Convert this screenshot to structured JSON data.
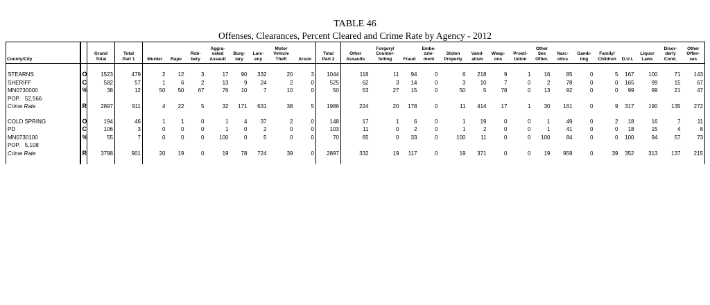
{
  "header": {
    "title": "TABLE 46",
    "subtitle": "Offenses, Clearances, Percent Cleared and Crime Rate by Agency - 2012"
  },
  "table": {
    "columns": [
      [
        "County/City"
      ],
      [
        "Grand",
        "Total"
      ],
      [
        "Total",
        "Part 1"
      ],
      [
        "Murder"
      ],
      [
        "Rape"
      ],
      [
        "Rob-",
        "bery"
      ],
      [
        "Aggra-",
        "vated",
        "Assault"
      ],
      [
        "Burg-",
        "lary"
      ],
      [
        "Larc-",
        "eny"
      ],
      [
        "Motor",
        "Vehicle",
        "Theft"
      ],
      [
        "Arson"
      ],
      [
        "Total",
        "Part 2"
      ],
      [
        "Other",
        "Assaults"
      ],
      [
        "Forgery/",
        "Counter-",
        "feiting"
      ],
      [
        "Fraud"
      ],
      [
        "Embe-",
        "zzle-",
        "ment"
      ],
      [
        "Stolen",
        "Property"
      ],
      [
        "Vand-",
        "alism"
      ],
      [
        "Weap-",
        "ons"
      ],
      [
        "Prosti-",
        "tution"
      ],
      [
        "Other",
        "Sex",
        "Offen."
      ],
      [
        "Narc-",
        "otics"
      ],
      [
        "Gamb-",
        "ling"
      ],
      [
        "Family/",
        "Children"
      ],
      [
        "D.U.I."
      ],
      [
        "Liquor",
        "Laws"
      ],
      [
        "Disor-",
        "derly",
        "Cond."
      ],
      [
        "Other",
        "Offen-",
        "ses"
      ]
    ],
    "groups": [
      {
        "rows": [
          {
            "name": "STEARNS",
            "code": "O",
            "values": [
              1523,
              479,
              2,
              12,
              3,
              17,
              90,
              332,
              20,
              3,
              1044,
              118,
              11,
              94,
              0,
              6,
              218,
              9,
              1,
              16,
              85,
              0,
              5,
              167,
              100,
              71,
              143
            ]
          },
          {
            "name": "SHERIFF",
            "code": "C",
            "values": [
              582,
              57,
              1,
              6,
              2,
              13,
              9,
              24,
              2,
              0,
              525,
              62,
              3,
              14,
              0,
              3,
              10,
              7,
              0,
              2,
              78,
              0,
              0,
              165,
              99,
              15,
              67
            ]
          },
          {
            "name": "MN0730000",
            "code": "%",
            "values": [
              38,
              12,
              50,
              50,
              67,
              76,
              10,
              7,
              10,
              0,
              50,
              53,
              27,
              15,
              0,
              50,
              5,
              78,
              0,
              13,
              92,
              0,
              0,
              99,
              99,
              21,
              47
            ]
          },
          {
            "name": "POP.   52,566"
          },
          {
            "name": "Crime Rate",
            "code": "R",
            "values": [
              2897,
              911,
              4,
              22,
              5,
              32,
              171,
              631,
              38,
              5,
              1986,
              224,
              20,
              178,
              0,
              11,
              414,
              17,
              1,
              30,
              161,
              0,
              9,
              317,
              190,
              135,
              272
            ]
          }
        ]
      },
      {
        "rows": [
          {
            "name": "COLD SPRING",
            "code": "O",
            "values": [
              194,
              46,
              1,
              1,
              0,
              1,
              4,
              37,
              2,
              0,
              148,
              17,
              1,
              6,
              0,
              1,
              19,
              0,
              0,
              1,
              49,
              0,
              2,
              18,
              16,
              7,
              11
            ]
          },
          {
            "name": "PD",
            "code": "C",
            "values": [
              106,
              3,
              0,
              0,
              0,
              1,
              0,
              2,
              0,
              0,
              103,
              11,
              0,
              2,
              0,
              1,
              2,
              0,
              0,
              1,
              41,
              0,
              0,
              18,
              15,
              4,
              8
            ]
          },
          {
            "name": "MN0730100",
            "code": "%",
            "values": [
              55,
              7,
              0,
              0,
              0,
              100,
              0,
              5,
              0,
              0,
              70,
              65,
              0,
              33,
              0,
              100,
              11,
              0,
              0,
              100,
              84,
              0,
              0,
              100,
              94,
              57,
              73
            ]
          },
          {
            "name": "POP.   5,108"
          },
          {
            "name": "Crime Rate",
            "code": "R",
            "values": [
              3798,
              901,
              20,
              19,
              0,
              19,
              78,
              724,
              39,
              0,
              2897,
              332,
              19,
              117,
              0,
              19,
              371,
              0,
              0,
              19,
              959,
              0,
              39,
              352,
              313,
              137,
              215
            ]
          }
        ]
      }
    ]
  }
}
